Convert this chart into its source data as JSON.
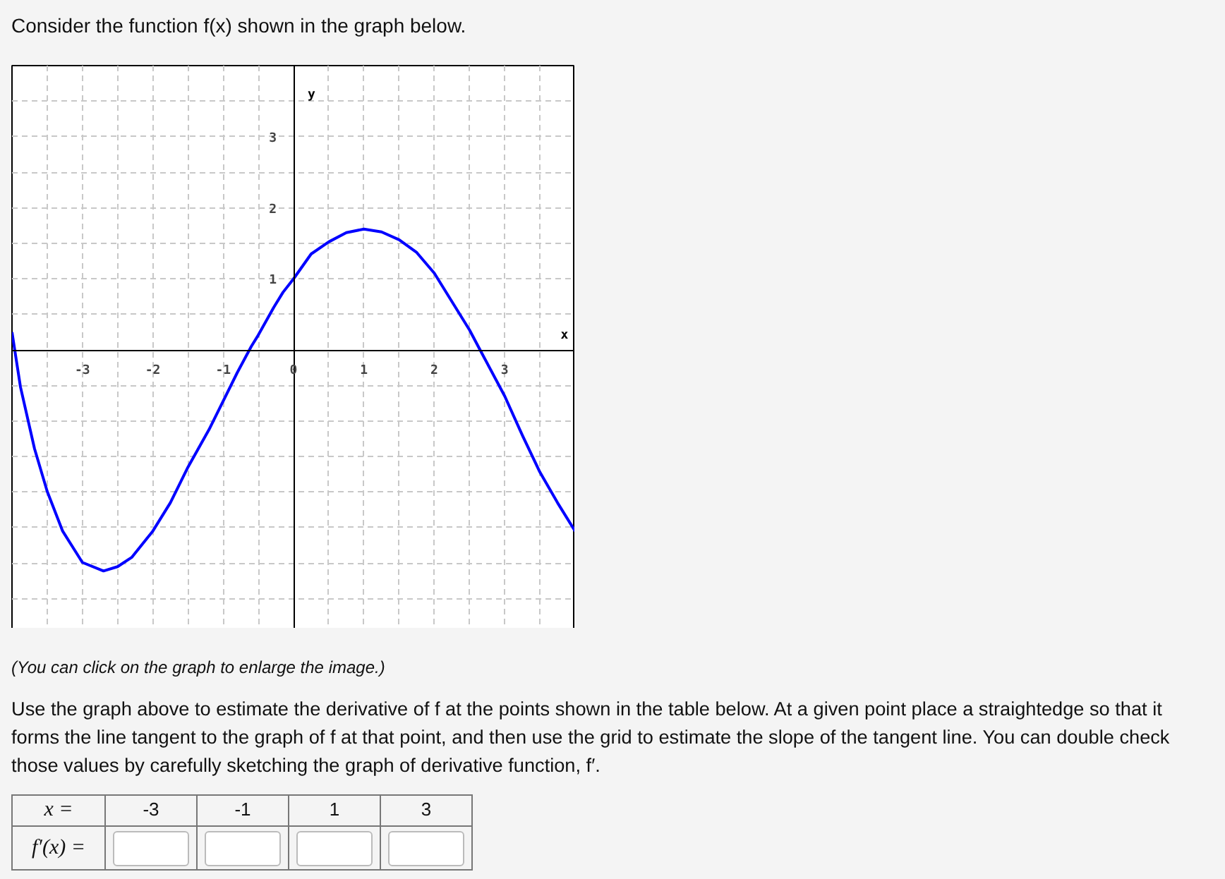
{
  "chart_data": {
    "type": "line",
    "title": "Consider the function f(x) shown in the graph below.",
    "xlabel": "x",
    "ylabel": "y",
    "x": [
      -4,
      -3.88,
      -3.68,
      -3.5,
      -3.28,
      -3.0,
      -2.7,
      -2.5,
      -2.3,
      -2.0,
      -1.75,
      -1.5,
      -1.2,
      -1.0,
      -0.8,
      -0.6,
      -0.5,
      -0.28,
      -0.15,
      0,
      0.25,
      0.5,
      0.75,
      1.0,
      1.25,
      1.5,
      1.75,
      2.0,
      2.25,
      2.5,
      2.65,
      3.0,
      3.25,
      3.5,
      3.75,
      4.0
    ],
    "values": [
      0.25,
      -0.52,
      -1.39,
      -1.99,
      -2.55,
      -2.99,
      -3.11,
      -3.05,
      -2.92,
      -2.55,
      -2.15,
      -1.65,
      -1.12,
      -0.72,
      -0.32,
      0.05,
      0.21,
      0.6,
      0.81,
      1.0,
      1.35,
      1.52,
      1.65,
      1.7,
      1.66,
      1.55,
      1.37,
      1.08,
      0.68,
      0.28,
      0.0,
      -0.65,
      -1.2,
      -1.72,
      -2.15,
      -2.55
    ],
    "color": "#0000ff",
    "xlim": [
      -4,
      4
    ],
    "ylim": [
      -4,
      4
    ],
    "xticks": [
      {
        "value": -3.5,
        "label": null
      },
      -3,
      {
        "value": -2.5,
        "label": null
      },
      -2,
      {
        "value": -1.5,
        "label": null
      },
      -1,
      {
        "value": -0.5,
        "label": null
      },
      0,
      {
        "value": 0.5,
        "label": null
      },
      1,
      {
        "value": 1.5,
        "label": null
      },
      2,
      {
        "value": 2.5,
        "label": null
      },
      3,
      {
        "value": 3.5,
        "label": null
      }
    ],
    "yticks": [
      {
        "value": -3.5,
        "label": null
      },
      {
        "value": -3,
        "label": null
      },
      {
        "value": -2.5,
        "label": null
      },
      {
        "value": -2,
        "label": null
      },
      {
        "value": -1.5,
        "label": null
      },
      {
        "value": -1,
        "label": null
      },
      {
        "value": -0.5,
        "label": null
      },
      {
        "value": 0,
        "label": null
      },
      {
        "value": 0.5,
        "label": null
      },
      1,
      {
        "value": 1.5,
        "label": null
      },
      2,
      {
        "value": 2.5,
        "label": null
      },
      3,
      {
        "value": 3.5,
        "label": null
      }
    ],
    "grid": true,
    "annotations": [
      "(You can click on the graph to enlarge the image.)",
      "Use the graph above to estimate the derivative of f at the points shown in the table below. At a given point place a straightedge so that it forms the line tangent to the graph of f at that point, and then use the grid to estimate the slope of the tangent line. You can double check those values by carefully sketching the graph of derivative function, f′.",
      "x =",
      "-3",
      "-1",
      "1",
      "3",
      "f′(x) ="
    ]
  }
}
